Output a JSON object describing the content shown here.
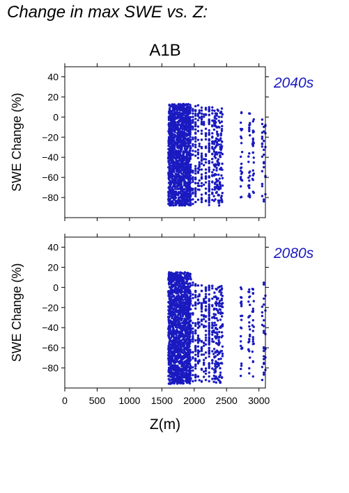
{
  "page": {
    "header": "Change in max SWE vs. Z:"
  },
  "chart_data": [
    {
      "type": "scatter",
      "title": "A1B",
      "period": "2040s",
      "xlabel": "Z(m)",
      "ylabel": "SWE Change (%)",
      "xlim": [
        0,
        3100
      ],
      "ylim": [
        -100,
        50
      ],
      "xticks": [
        0,
        500,
        1000,
        1500,
        2000,
        2500,
        3000
      ],
      "yticks": [
        -80,
        -60,
        -40,
        -20,
        0,
        20,
        40
      ],
      "marker_color": "#1a1ac0",
      "point_bands": [
        {
          "x": [
            1600,
            1950
          ],
          "y": [
            -88,
            13
          ],
          "count": 1500
        },
        {
          "x": [
            1980,
            2060
          ],
          "y": [
            -88,
            12
          ],
          "count": 90
        },
        {
          "x": [
            2080,
            2150
          ],
          "y": [
            -85,
            10
          ],
          "count": 60
        },
        {
          "x": [
            2180,
            2280
          ],
          "y": [
            -88,
            10
          ],
          "count": 120
        },
        {
          "x": [
            2300,
            2440
          ],
          "y": [
            -88,
            9
          ],
          "count": 160
        },
        {
          "x": [
            2720,
            2740
          ],
          "y": [
            -80,
            5
          ],
          "count": 25
        },
        {
          "x": [
            2840,
            2860
          ],
          "y": [
            -82,
            8
          ],
          "count": 25
        },
        {
          "x": [
            2900,
            2920
          ],
          "y": [
            -80,
            2
          ],
          "count": 25
        },
        {
          "x": [
            3050,
            3100
          ],
          "y": [
            -85,
            0
          ],
          "count": 30
        }
      ]
    },
    {
      "type": "scatter",
      "period": "2080s",
      "xlabel": "Z(m)",
      "ylabel": "SWE Change (%)",
      "xlim": [
        0,
        3100
      ],
      "ylim": [
        -100,
        50
      ],
      "xticks": [
        0,
        500,
        1000,
        1500,
        2000,
        2500,
        3000
      ],
      "yticks": [
        -80,
        -60,
        -40,
        -20,
        0,
        20,
        40
      ],
      "marker_color": "#1a1ac0",
      "point_bands": [
        {
          "x": [
            1600,
            1950
          ],
          "y": [
            -96,
            15
          ],
          "count": 1500
        },
        {
          "x": [
            1980,
            2060
          ],
          "y": [
            -95,
            7
          ],
          "count": 90
        },
        {
          "x": [
            2080,
            2150
          ],
          "y": [
            -95,
            2
          ],
          "count": 60
        },
        {
          "x": [
            2180,
            2280
          ],
          "y": [
            -95,
            3
          ],
          "count": 120
        },
        {
          "x": [
            2300,
            2440
          ],
          "y": [
            -95,
            2
          ],
          "count": 160
        },
        {
          "x": [
            2720,
            2740
          ],
          "y": [
            -93,
            0
          ],
          "count": 25
        },
        {
          "x": [
            2840,
            2860
          ],
          "y": [
            -95,
            1
          ],
          "count": 25
        },
        {
          "x": [
            2900,
            2920
          ],
          "y": [
            -90,
            0
          ],
          "count": 25
        },
        {
          "x": [
            3050,
            3100
          ],
          "y": [
            -93,
            5
          ],
          "count": 30
        }
      ]
    }
  ]
}
